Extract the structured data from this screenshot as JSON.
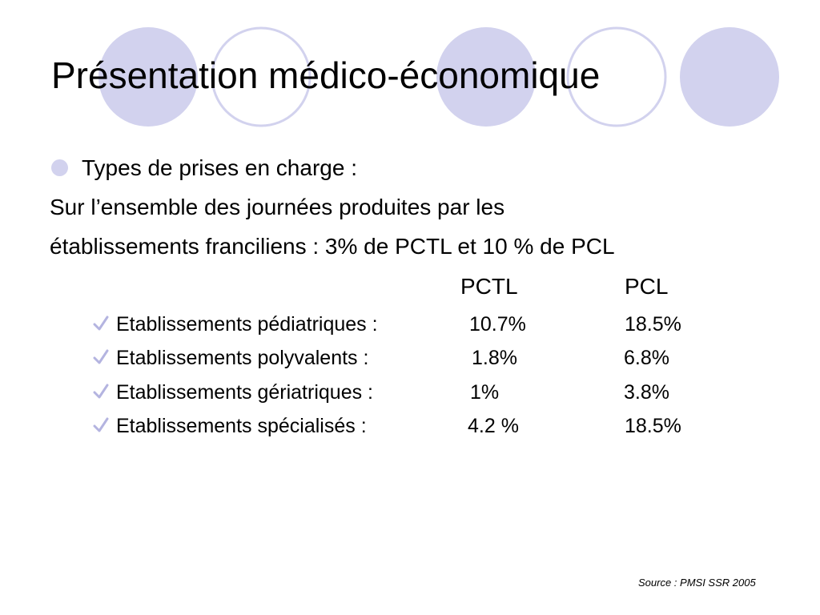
{
  "slide": {
    "title": "Présentation médico-économique",
    "bullet": "Types de prises en charge :",
    "line1": "Sur l’ensemble des journées produites par les",
    "line2": "établissements franciliens : 3%  de PCTL et 10 % de PCL",
    "columns": [
      "PCTL",
      "PCL"
    ],
    "rows": [
      {
        "label": "Etablissements pédiatriques :",
        "pctl": "10.7%",
        "pcl": "18.5%"
      },
      {
        "label": "Etablissements polyvalents :",
        "pctl": "1.8%",
        "pcl": "6.8%"
      },
      {
        "label": "Etablissements gériatriques :",
        "pctl": "1%",
        "pcl": "3.8%"
      },
      {
        "label": "Etablissements spécialisés :",
        "pctl": "4.2 %",
        "pcl": "18.5%"
      }
    ],
    "source": "Source : PMSI SSR 2005"
  },
  "colors": {
    "circle_fill": "#d2d2ee",
    "circle_outline": "#d2d2ee",
    "check": "#b4b4e0",
    "text": "#000000"
  },
  "icons": {
    "bullet": "circle-bullet-icon",
    "sub_bullet": "checkmark-icon"
  }
}
